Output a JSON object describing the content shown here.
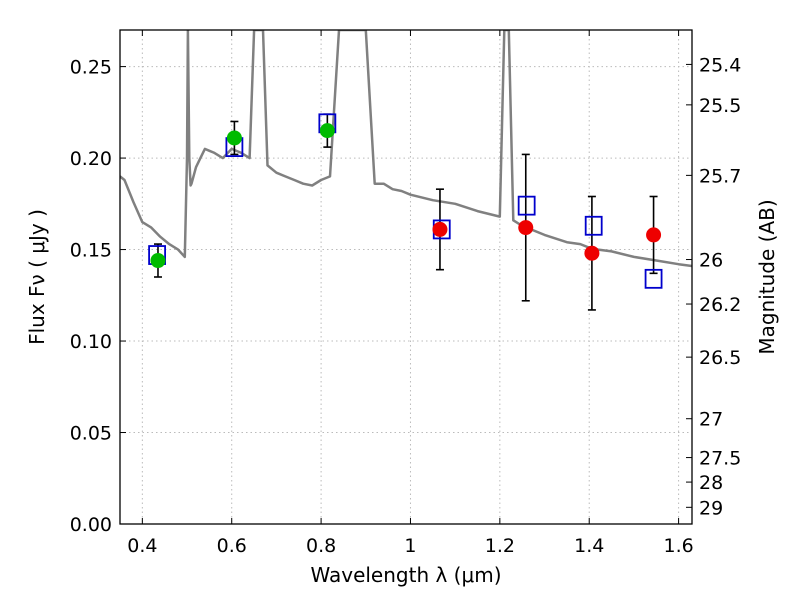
{
  "chart_data": {
    "type": "scatter",
    "xlabel": "Wavelength  λ (μm)",
    "ylabel": "Flux  Fν  ( μJy )",
    "y2label": "Magnitude (AB)",
    "xlim": [
      0.35,
      1.63
    ],
    "ylim": [
      0.0,
      0.27
    ],
    "grid": true,
    "x_ticks": [
      0.4,
      0.6,
      0.8,
      1.0,
      1.2,
      1.4,
      1.6
    ],
    "x_tick_labels": [
      "0.4",
      "0.6",
      "0.8",
      "1",
      "1.2",
      "1.4",
      "1.6"
    ],
    "y_ticks": [
      0.0,
      0.05,
      0.1,
      0.15,
      0.2,
      0.25
    ],
    "y_tick_labels": [
      "0.00",
      "0.05",
      "0.10",
      "0.15",
      "0.20",
      "0.25"
    ],
    "mag_ticks": [
      "25.4",
      "25.5",
      "25.7",
      "26",
      "26.2",
      "26.5",
      "27",
      "27.5",
      "28",
      "29"
    ],
    "colors": {
      "model": "#808080",
      "green": "#00bb00",
      "red": "#ee0000",
      "box": "#0000cc",
      "errorbar": "#000000",
      "grid": "#bbbbbb"
    },
    "series": [
      {
        "name": "observed (green)",
        "x": [
          0.435,
          0.606,
          0.814
        ],
        "y": [
          0.144,
          0.211,
          0.215
        ],
        "yerr": [
          0.009,
          0.009,
          0.009
        ]
      },
      {
        "name": "observed (red)",
        "x": [
          1.066,
          1.258,
          1.406,
          1.544
        ],
        "y": [
          0.161,
          0.162,
          0.148,
          0.158
        ],
        "yerr": [
          0.022,
          0.04,
          0.031,
          0.021
        ]
      },
      {
        "name": "model photometry",
        "x": [
          0.433,
          0.606,
          0.814,
          1.07,
          1.26,
          1.41,
          1.544
        ],
        "y": [
          0.147,
          0.206,
          0.219,
          0.161,
          0.174,
          0.163,
          0.134
        ]
      },
      {
        "name": "model SED",
        "x": [
          0.35,
          0.36,
          0.38,
          0.4,
          0.42,
          0.44,
          0.46,
          0.48,
          0.495,
          0.5,
          0.502,
          0.505,
          0.508,
          0.51,
          0.52,
          0.53,
          0.54,
          0.55,
          0.56,
          0.58,
          0.6,
          0.62,
          0.64,
          0.65,
          0.66,
          0.67,
          0.68,
          0.7,
          0.72,
          0.74,
          0.76,
          0.78,
          0.8,
          0.82,
          0.84,
          0.86,
          0.88,
          0.9,
          0.92,
          0.94,
          0.96,
          0.98,
          1.0,
          1.05,
          1.1,
          1.15,
          1.2,
          1.21,
          1.22,
          1.23,
          1.25,
          1.3,
          1.35,
          1.38,
          1.4,
          1.42,
          1.45,
          1.5,
          1.55,
          1.6,
          1.63
        ],
        "y": [
          0.19,
          0.188,
          0.176,
          0.165,
          0.162,
          0.157,
          0.153,
          0.15,
          0.146,
          0.2,
          0.27,
          0.2,
          0.185,
          0.186,
          0.195,
          0.2,
          0.205,
          0.204,
          0.203,
          0.2,
          0.205,
          0.203,
          0.2,
          0.27,
          0.27,
          0.27,
          0.196,
          0.192,
          0.19,
          0.188,
          0.186,
          0.185,
          0.188,
          0.19,
          0.27,
          0.27,
          0.27,
          0.27,
          0.186,
          0.186,
          0.183,
          0.182,
          0.18,
          0.177,
          0.175,
          0.171,
          0.168,
          0.27,
          0.27,
          0.166,
          0.163,
          0.158,
          0.154,
          0.153,
          0.151,
          0.15,
          0.149,
          0.146,
          0.144,
          0.142,
          0.141
        ]
      }
    ]
  }
}
